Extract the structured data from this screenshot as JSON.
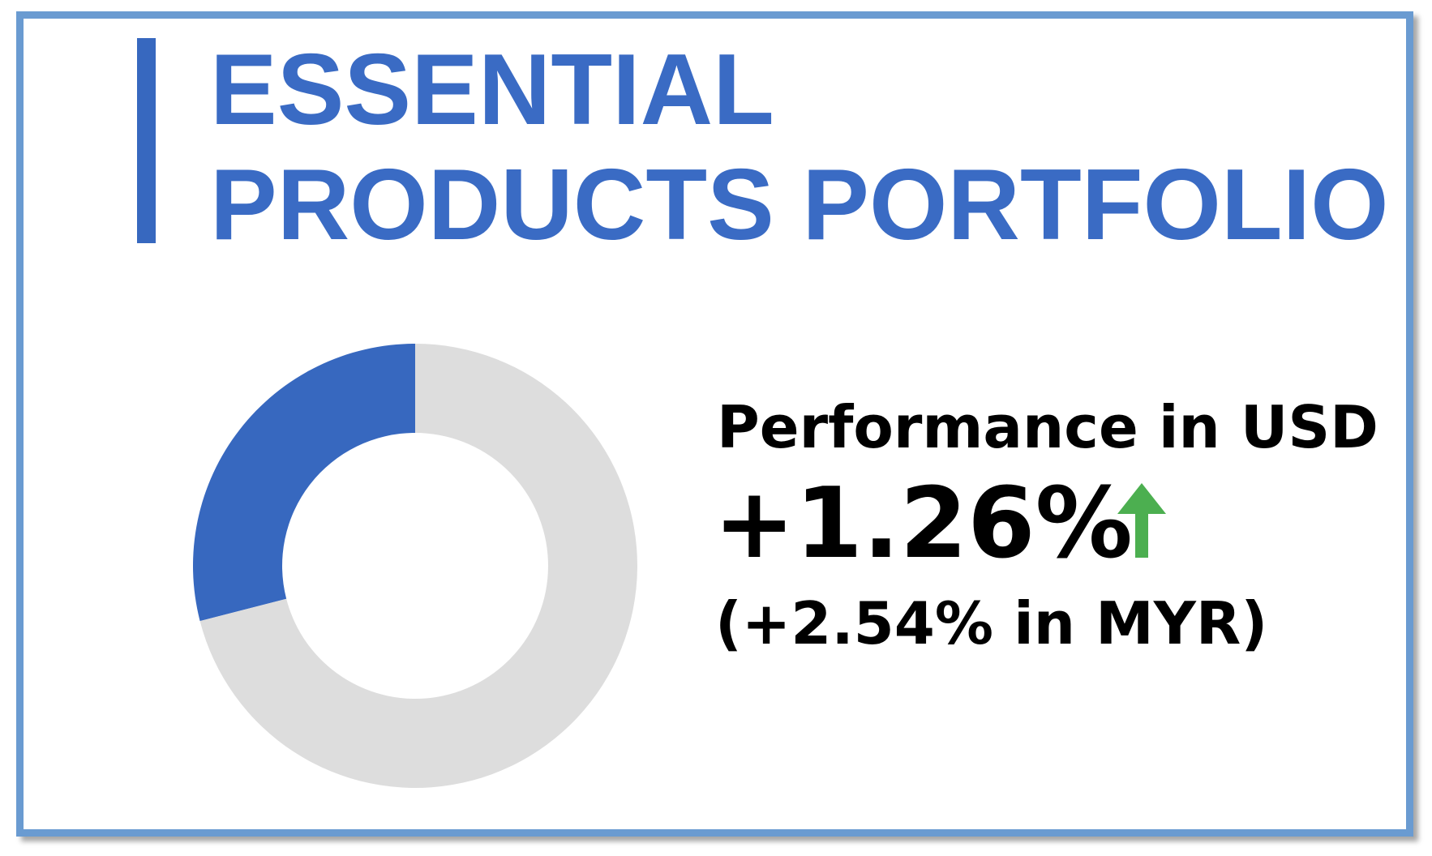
{
  "title": [
    "ESSENTIAL",
    "PRODUCTS PORTFOLIO"
  ],
  "chart_data": {
    "type": "pie",
    "donut": true,
    "values": [
      29,
      71
    ],
    "colors": [
      "#3768bf",
      "#dddddd"
    ]
  },
  "performance": {
    "label": "Performance in USD",
    "value": "+1.26%",
    "note": "(+2.54% in MYR)"
  }
}
